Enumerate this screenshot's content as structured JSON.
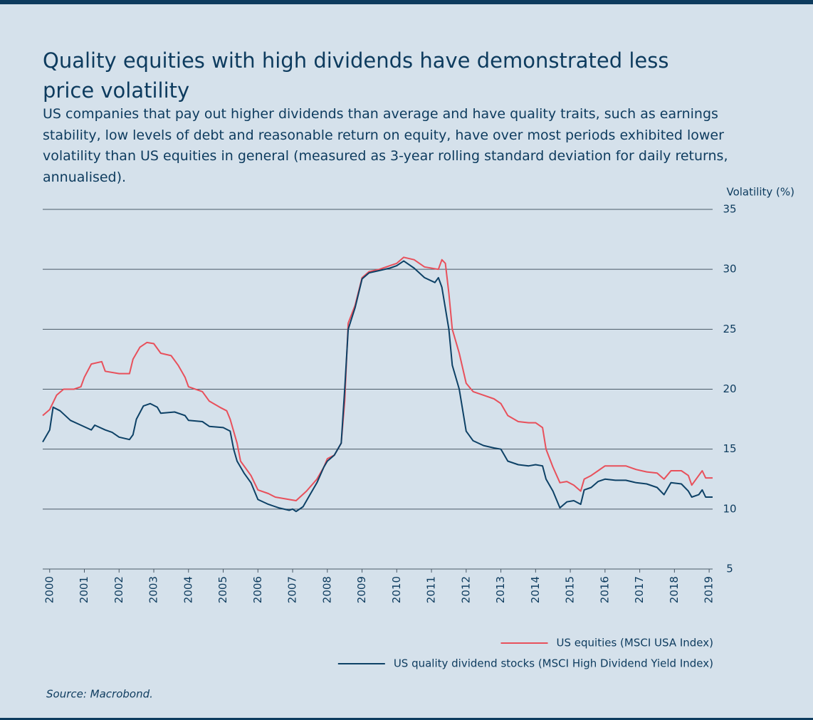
{
  "chart_data": {
    "type": "line",
    "title": "Quality equities with high dividends have demonstrated less price volatility",
    "subtitle": "US companies that pay out higher dividends than average and have quality traits, such as earnings stability, low levels of debt and reasonable return on equity, have over most periods exhibited lower volatility than US equities in general (measured as 3-year rolling standard deviation for daily returns, annualised).",
    "y_axis_label": "Volatility (%)",
    "source": "Source: Macrobond.",
    "xlim": [
      1999.8,
      2019.1
    ],
    "xticks": [
      2000,
      2001,
      2002,
      2003,
      2004,
      2005,
      2006,
      2007,
      2008,
      2009,
      2010,
      2011,
      2012,
      2013,
      2014,
      2015,
      2016,
      2017,
      2018,
      2019
    ],
    "ylim": [
      5,
      35
    ],
    "yticks": [
      5,
      10,
      15,
      20,
      25,
      30,
      35
    ],
    "grid": true,
    "legend": "bottom-right",
    "series": [
      {
        "name": "US equities (MSCI USA Index)",
        "color": "#e8505b",
        "x": [
          1999.8,
          2000.0,
          2000.2,
          2000.4,
          2000.7,
          2000.9,
          2001.0,
          2001.2,
          2001.5,
          2001.6,
          2002.0,
          2002.3,
          2002.4,
          2002.6,
          2002.8,
          2003.0,
          2003.2,
          2003.5,
          2003.7,
          2003.9,
          2004.0,
          2004.4,
          2004.6,
          2004.9,
          2005.1,
          2005.2,
          2005.4,
          2005.5,
          2005.8,
          2006.0,
          2006.3,
          2006.5,
          2006.9,
          2007.1,
          2007.4,
          2007.7,
          2007.9,
          2008.0,
          2008.2,
          2008.4,
          2008.5,
          2008.6,
          2008.8,
          2009.0,
          2009.2,
          2009.5,
          2009.8,
          2010.0,
          2010.2,
          2010.5,
          2010.8,
          2011.2,
          2011.3,
          2011.4,
          2011.5,
          2011.6,
          2011.8,
          2012.0,
          2012.2,
          2012.5,
          2012.8,
          2013.0,
          2013.2,
          2013.5,
          2013.8,
          2014.0,
          2014.2,
          2014.3,
          2014.5,
          2014.7,
          2014.9,
          2015.1,
          2015.3,
          2015.4,
          2015.6,
          2015.8,
          2016.0,
          2016.3,
          2016.6,
          2016.9,
          2017.2,
          2017.5,
          2017.7,
          2017.9,
          2018.2,
          2018.4,
          2018.5,
          2018.7,
          2018.8,
          2018.9,
          2019.0,
          2019.1
        ],
        "values": [
          17.8,
          18.3,
          19.5,
          20.0,
          20.0,
          20.2,
          21.0,
          22.1,
          22.3,
          21.5,
          21.3,
          21.3,
          22.5,
          23.5,
          23.9,
          23.8,
          23.0,
          22.8,
          22.0,
          21.0,
          20.2,
          19.8,
          19.0,
          18.5,
          18.2,
          17.5,
          15.5,
          14.0,
          12.8,
          11.6,
          11.3,
          11.0,
          10.8,
          10.7,
          11.5,
          12.5,
          13.5,
          14.2,
          14.5,
          15.5,
          19.0,
          25.5,
          27.0,
          29.3,
          29.8,
          30.0,
          30.3,
          30.5,
          31.0,
          30.8,
          30.2,
          30.0,
          30.8,
          30.5,
          28.0,
          25.0,
          23.0,
          20.5,
          19.8,
          19.5,
          19.2,
          18.8,
          17.8,
          17.3,
          17.2,
          17.2,
          16.8,
          15.0,
          13.5,
          12.2,
          12.3,
          12.0,
          11.5,
          12.5,
          12.8,
          13.2,
          13.6,
          13.6,
          13.6,
          13.3,
          13.1,
          13.0,
          12.5,
          13.2,
          13.2,
          12.8,
          12.0,
          12.8,
          13.2,
          12.6,
          12.6,
          12.6
        ]
      },
      {
        "name": "US quality dividend stocks (MSCI High Dividend Yield Index)",
        "color": "#0d4166",
        "x": [
          1999.8,
          2000.0,
          2000.1,
          2000.3,
          2000.6,
          2000.9,
          2001.2,
          2001.3,
          2001.6,
          2001.8,
          2002.0,
          2002.3,
          2002.4,
          2002.5,
          2002.7,
          2002.9,
          2003.1,
          2003.2,
          2003.6,
          2003.9,
          2004.0,
          2004.4,
          2004.6,
          2005.0,
          2005.2,
          2005.3,
          2005.4,
          2005.6,
          2005.8,
          2006.0,
          2006.3,
          2006.6,
          2006.9,
          2007.0,
          2007.1,
          2007.3,
          2007.5,
          2007.7,
          2007.9,
          2008.0,
          2008.2,
          2008.4,
          2008.5,
          2008.6,
          2008.8,
          2009.0,
          2009.2,
          2009.5,
          2009.8,
          2010.0,
          2010.2,
          2010.5,
          2010.8,
          2011.1,
          2011.2,
          2011.3,
          2011.5,
          2011.6,
          2011.8,
          2012.0,
          2012.2,
          2012.5,
          2012.8,
          2013.0,
          2013.2,
          2013.5,
          2013.8,
          2014.0,
          2014.2,
          2014.3,
          2014.5,
          2014.7,
          2014.9,
          2015.1,
          2015.3,
          2015.4,
          2015.6,
          2015.8,
          2016.0,
          2016.3,
          2016.6,
          2016.9,
          2017.2,
          2017.5,
          2017.7,
          2017.9,
          2018.2,
          2018.4,
          2018.5,
          2018.7,
          2018.8,
          2018.9,
          2019.0,
          2019.1
        ],
        "values": [
          15.6,
          16.6,
          18.5,
          18.2,
          17.4,
          17.0,
          16.6,
          17.0,
          16.6,
          16.4,
          16.0,
          15.8,
          16.2,
          17.5,
          18.6,
          18.8,
          18.5,
          18.0,
          18.1,
          17.8,
          17.4,
          17.3,
          16.9,
          16.8,
          16.5,
          15.0,
          14.0,
          13.0,
          12.2,
          10.8,
          10.4,
          10.1,
          9.9,
          10.0,
          9.8,
          10.2,
          11.2,
          12.2,
          13.5,
          14.0,
          14.5,
          15.5,
          20.0,
          25.0,
          26.8,
          29.2,
          29.7,
          29.9,
          30.1,
          30.3,
          30.7,
          30.1,
          29.3,
          28.9,
          29.3,
          28.5,
          25.0,
          22.0,
          20.0,
          16.5,
          15.7,
          15.3,
          15.1,
          15.0,
          14.0,
          13.7,
          13.6,
          13.7,
          13.6,
          12.5,
          11.5,
          10.1,
          10.6,
          10.7,
          10.4,
          11.6,
          11.8,
          12.3,
          12.5,
          12.4,
          12.4,
          12.2,
          12.1,
          11.8,
          11.2,
          12.2,
          12.1,
          11.5,
          11.0,
          11.2,
          11.6,
          11.0,
          11.0,
          11.0
        ]
      }
    ]
  }
}
